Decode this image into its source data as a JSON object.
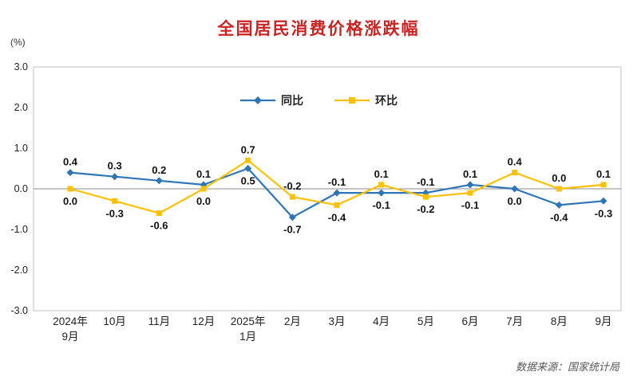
{
  "title": "全国居民消费价格涨跌幅",
  "y_axis_unit": "(%)",
  "legend": {
    "series1_label": "同比",
    "series2_label": "环比"
  },
  "source": "数据来源：国家统计局",
  "colors": {
    "tongbi": "#2e75b6",
    "huanbi": "#ffc000",
    "title": "#cc2222",
    "zero_line": "#8c8c8c",
    "border": "#c0c0c0",
    "tick_text": "#222222",
    "data_label": "#111111"
  },
  "chart_data": {
    "type": "line",
    "title": "全国居民消费价格涨跌幅",
    "ylabel": "(%)",
    "ylim": [
      -3.0,
      3.0
    ],
    "yticks": [
      3.0,
      2.0,
      1.0,
      0.0,
      -1.0,
      -2.0,
      -3.0
    ],
    "grid": false,
    "legend_position": "top-center",
    "categories": [
      "2024年\n9月",
      "10月",
      "11月",
      "12月",
      "2025年\n1月",
      "2月",
      "3月",
      "4月",
      "5月",
      "6月",
      "7月",
      "8月",
      "9月"
    ],
    "series": [
      {
        "name": "同比",
        "color_key": "tongbi",
        "marker": "diamond",
        "values": [
          0.4,
          0.3,
          0.2,
          0.1,
          0.5,
          -0.7,
          -0.1,
          -0.1,
          -0.1,
          0.1,
          0.0,
          -0.4,
          -0.3
        ],
        "label_pos": [
          "above",
          "above",
          "above",
          "above",
          "below",
          "below",
          "above",
          "below",
          "above",
          "above",
          "below",
          "below",
          "below"
        ]
      },
      {
        "name": "环比",
        "color_key": "huanbi",
        "marker": "square",
        "values": [
          0.0,
          -0.3,
          -0.6,
          0.0,
          0.7,
          -0.2,
          -0.4,
          0.1,
          -0.2,
          -0.1,
          0.4,
          0.0,
          0.1
        ],
        "label_pos": [
          "below",
          "below",
          "below",
          "below",
          "above",
          "above",
          "below",
          "above",
          "below",
          "below",
          "above",
          "above",
          "above"
        ]
      }
    ]
  }
}
